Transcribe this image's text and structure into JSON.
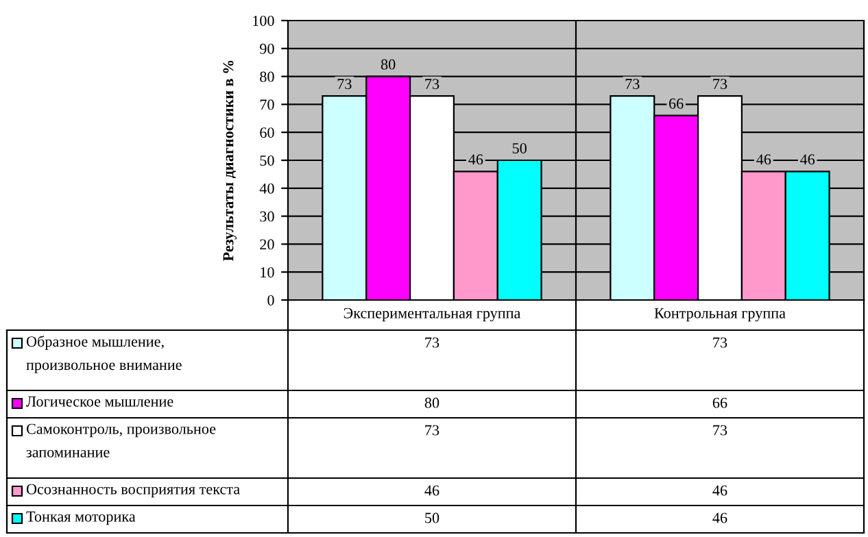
{
  "chart_data": {
    "type": "bar",
    "ylabel": "Результаты диагностики в %",
    "categories": [
      "Экспериментальная группа",
      "Контрольная группа"
    ],
    "series": [
      {
        "name": "Образное мышление,\nпроизвольное внимание",
        "color": "#ccffff",
        "values": [
          73,
          73
        ],
        "value_labels": [
          "73",
          "73"
        ]
      },
      {
        "name": "Логическое мышление",
        "color": "#ff00ff",
        "values": [
          80,
          66
        ],
        "value_labels": [
          "80",
          "66"
        ]
      },
      {
        "name": "Самоконтроль, произвольное\nзапоминание",
        "color": "#ffffff",
        "values": [
          73,
          73
        ],
        "value_labels": [
          "73",
          "73"
        ]
      },
      {
        "name": "Осознанность восприятия текста",
        "color": "#ff99cc",
        "values": [
          46,
          46
        ],
        "value_labels": [
          "46",
          "46"
        ]
      },
      {
        "name": "Тонкая моторика",
        "color": "#00ffff",
        "values": [
          50,
          46
        ],
        "value_labels": [
          "50",
          "46"
        ]
      }
    ],
    "ylim": [
      0,
      100
    ],
    "yticks": [
      0,
      10,
      20,
      30,
      40,
      50,
      60,
      70,
      80,
      90,
      100
    ],
    "annotations": [
      "73",
      "73",
      "80",
      "66",
      "73",
      "73",
      "46",
      "46",
      "50",
      "46"
    ],
    "grid": "y",
    "data_labels": true,
    "legend": "bottom"
  }
}
